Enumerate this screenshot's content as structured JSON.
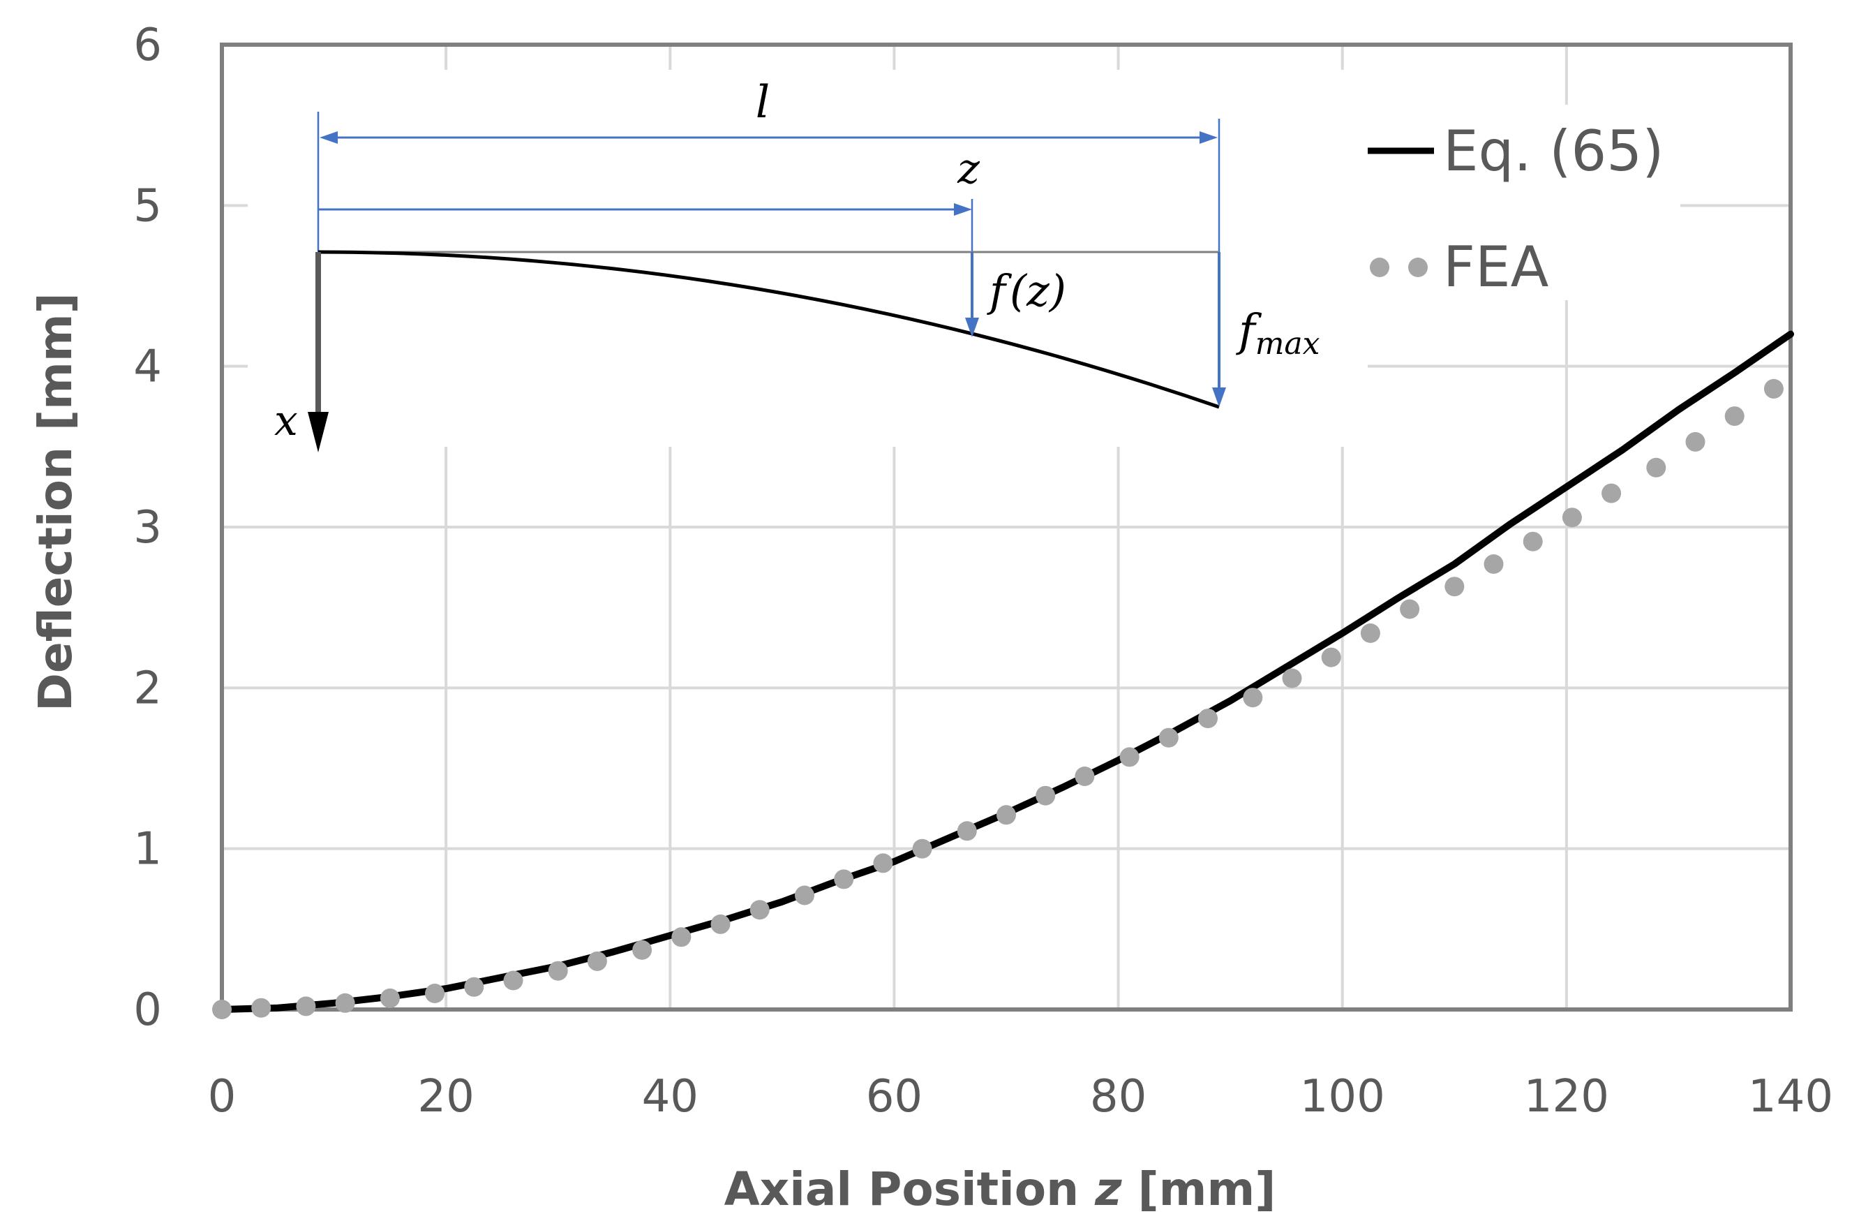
{
  "chart_data": {
    "type": "line",
    "xlabel_prefix": "Axial Position ",
    "xlabel_var": "z",
    "xlabel_suffix": " [mm]",
    "ylabel": "Deflection [mm]",
    "xlim": [
      0,
      140
    ],
    "ylim": [
      0,
      6
    ],
    "xticks": [
      "0",
      "20",
      "40",
      "60",
      "80",
      "100",
      "120",
      "140"
    ],
    "yticks": [
      "0",
      "1",
      "2",
      "3",
      "4",
      "5",
      "6"
    ],
    "grid": true,
    "legend_position": "top-right",
    "colors": {
      "eq_line": "#000000",
      "fea_marker": "#a6a6a6",
      "grid": "#d9d9d9",
      "frame": "#7f7f7f",
      "inset_arrow": "#4472c4"
    },
    "series": [
      {
        "name": "Eq. (65)",
        "style": "solid-line",
        "x": [
          0,
          5,
          10,
          15,
          20,
          25,
          30,
          35,
          40,
          45,
          50,
          55,
          60,
          65,
          70,
          75,
          80,
          85,
          90,
          95,
          100,
          105,
          110,
          115,
          120,
          125,
          130,
          135,
          140
        ],
        "y": [
          0,
          0.01,
          0.04,
          0.08,
          0.13,
          0.2,
          0.27,
          0.36,
          0.46,
          0.56,
          0.67,
          0.8,
          0.92,
          1.07,
          1.22,
          1.38,
          1.55,
          1.73,
          1.92,
          2.13,
          2.34,
          2.56,
          2.77,
          3.02,
          3.25,
          3.48,
          3.73,
          3.96,
          4.2
        ]
      },
      {
        "name": "FEA",
        "style": "dotted-markers",
        "x": [
          0,
          3.5,
          7.5,
          11,
          15,
          19,
          22.5,
          26,
          30,
          33.5,
          37.5,
          41,
          44.5,
          48,
          52,
          55.5,
          59,
          62.5,
          66.5,
          70,
          73.5,
          77,
          81,
          84.5,
          88,
          92,
          95.5,
          99,
          102.5,
          106,
          110,
          113.5,
          117,
          120.5,
          124,
          128,
          131.5,
          135,
          138.5
        ],
        "y": [
          0,
          0.01,
          0.02,
          0.04,
          0.07,
          0.1,
          0.14,
          0.18,
          0.24,
          0.3,
          0.37,
          0.45,
          0.53,
          0.62,
          0.71,
          0.81,
          0.91,
          1.0,
          1.11,
          1.21,
          1.33,
          1.45,
          1.57,
          1.69,
          1.81,
          1.94,
          2.06,
          2.19,
          2.34,
          2.49,
          2.63,
          2.77,
          2.91,
          3.06,
          3.21,
          3.37,
          3.53,
          3.69,
          3.86
        ]
      }
    ],
    "inset": {
      "length_label": "l",
      "position_label": "z",
      "deflection_label_f": "f",
      "deflection_label_arg": "(z)",
      "max_label_f": "f",
      "max_label_sub": "max",
      "axis_label": "x"
    }
  }
}
